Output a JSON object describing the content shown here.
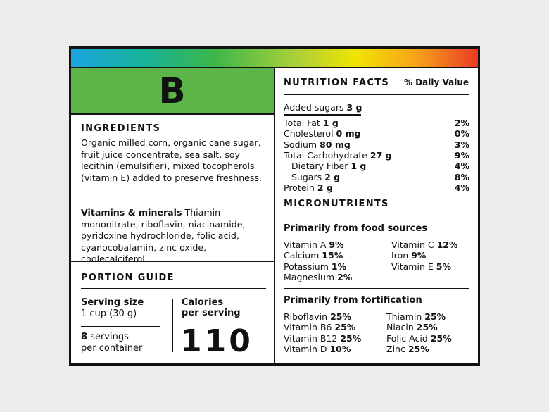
{
  "grade": "B",
  "ingredients": {
    "title": "INGREDIENTS",
    "text": "Organic milled corn, organic cane sugar, fruit juice concentrate, sea salt, soy lecithin (emulsifier), mixed tocopherols (vitamin E) added to preserve freshness.",
    "vitamins_label": "Vitamins & minerals",
    "vitamins_text": "Thiamin mononitrate, riboflavin, niacinamide, pyridoxine hydrochloride, folic acid, cyanocobalamin, zinc oxide, cholecalciferol."
  },
  "portion": {
    "title": "PORTION GUIDE",
    "serving_label": "Serving size",
    "serving_value": "1 cup (30 g)",
    "servings_count": "8",
    "servings_text": "servings",
    "servings_per": "per container",
    "calories_label": "Calories",
    "calories_sub": "per serving",
    "calories": "110"
  },
  "nutrition": {
    "title": "NUTRITION FACTS",
    "dv_header": "% Daily Value",
    "added_sugars": {
      "label": "Added sugars",
      "amount": "3 g"
    },
    "rows": [
      {
        "label": "Total Fat",
        "amount": "1 g",
        "dv": "2%"
      },
      {
        "label": "Cholesterol",
        "amount": "0 mg",
        "dv": "0%"
      },
      {
        "label": "Sodium",
        "amount": "80 mg",
        "dv": "3%"
      },
      {
        "label": "Total Carbohydrate",
        "amount": "27 g",
        "dv": "9%"
      },
      {
        "label": "Dietary Fiber",
        "amount": "1 g",
        "dv": "4%"
      },
      {
        "label": "Sugars",
        "amount": "2 g",
        "dv": "8%"
      },
      {
        "label": "Protein",
        "amount": "2 g",
        "dv": "4%"
      }
    ]
  },
  "micronutrients": {
    "title": "MICRONUTRIENTS",
    "food": {
      "title": "Primarily from food sources",
      "left": [
        {
          "name": "Vitamin A",
          "amount": "9%"
        },
        {
          "name": "Calcium",
          "amount": "15%"
        },
        {
          "name": "Potassium",
          "amount": "1%"
        },
        {
          "name": "Magnesium",
          "amount": "2%"
        }
      ],
      "right": [
        {
          "name": "Vitamin C",
          "amount": "12%"
        },
        {
          "name": "Iron",
          "amount": "9%"
        },
        {
          "name": "Vitamin E",
          "amount": "5%"
        }
      ]
    },
    "fortification": {
      "title": "Primarily from fortification",
      "left": [
        {
          "name": "Riboflavin",
          "amount": "25%"
        },
        {
          "name": "Vitamin B6",
          "amount": "25%"
        },
        {
          "name": "Vitamin B12",
          "amount": "25%"
        },
        {
          "name": "Vitamin D",
          "amount": "10%"
        }
      ],
      "right": [
        {
          "name": "Thiamin",
          "amount": "25%"
        },
        {
          "name": "Niacin",
          "amount": "25%"
        },
        {
          "name": "Folic Acid",
          "amount": "25%"
        },
        {
          "name": "Zinc",
          "amount": "25%"
        }
      ]
    }
  }
}
